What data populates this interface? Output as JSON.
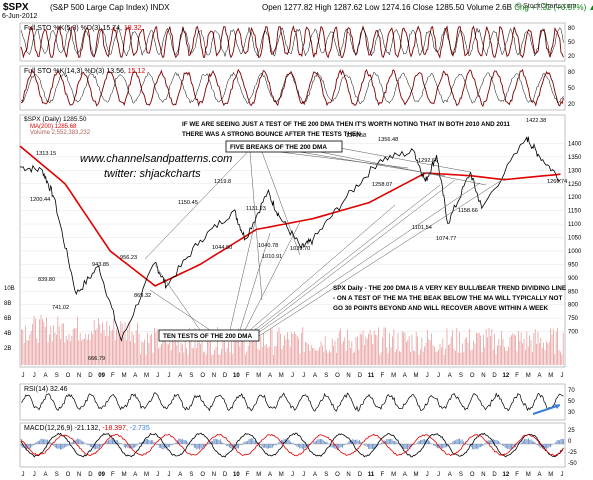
{
  "header": {
    "symbol": "$SPX",
    "name": "(S&P 500 Large Cap Index) INDX",
    "date": "6-Jun-2012",
    "ohlc_text": "Open 1277.82  High 1287.62  Low 1274.16  Close 1285.50  Volume 2.6B",
    "change_text": "Chg +7.32 (+0.57%) ▲",
    "brand": "© StockCharts.com"
  },
  "panels": {
    "sto1": {
      "label": "Full STO %K(5,3) %D(3) 15.74,",
      "label_value": "19.32",
      "levels": [
        "80",
        "50",
        "20"
      ]
    },
    "sto2": {
      "label": "Full STO %K(14,3) %D(3) 13.56,",
      "label_value": "15.12",
      "levels": [
        "80",
        "50",
        "20"
      ]
    },
    "main": {
      "legend_title": "$SPX (Daily) 1285.50",
      "legend_ma": "MA(200) 1285.68",
      "legend_vol": "Volume 2,552,383,232",
      "annotation_top_1": "IF WE ARE SEEING JUST A TEST OF THE 200 DMA THEN IT'S WORTH NOTING THAT IN BOTH 2010 AND 2011",
      "annotation_top_2": "THERE WAS A STRONG BOUNCE AFTER THE TESTS THEN",
      "watermark_1": "www.channelsandpatterns.com",
      "watermark_2": "twitter: shjackcharts",
      "box_breaks": "FIVE BREAKS OF THE 200 DMA",
      "box_tests": "TEN TESTS OF THE 200 DMA",
      "note_1": "SPX Daily - THE 200 DMA IS A VERY KEY BULL/BEAR TREND DIVIDING LINE",
      "note_2": "- ON A TEST OF THE MA THE BEAK BELOW THE MA WILL TYPICALLY NOT",
      "note_3": "GO 30 POINTS BEYOND AND WILL RECOVER ABOVE WITHIN A WEEK",
      "price_labels": [
        "1313.15",
        "1200.44",
        "839.80",
        "741.02",
        "666.79",
        "943.85",
        "956.23",
        "869.32",
        "1150.45",
        "1219.8",
        "1044.50",
        "1131.23",
        "1040.78",
        "1010.91",
        "1039.70",
        "1370.58",
        "1356.48",
        "1258.07",
        "1292.66",
        "1101.54",
        "1074.77",
        "1158.66",
        "1422.38",
        "1266.74"
      ],
      "price_ticks": [
        "1400",
        "1350",
        "1300",
        "1250",
        "1200",
        "1150",
        "1100",
        "1050",
        "1000",
        "950",
        "900",
        "850",
        "800",
        "750",
        "700"
      ],
      "volume_ticks": [
        "10B",
        "8B",
        "6B",
        "4B",
        "2B"
      ]
    },
    "rsi": {
      "label": "RSI(14) 32.46",
      "levels": [
        "70",
        "50",
        "30"
      ]
    },
    "macd": {
      "label": "MACD(12,26,9) -21.132,",
      "label_signal": "-18.397,",
      "label_hist": "-2.735",
      "levels": [
        "25",
        "0",
        "-25",
        "-50"
      ]
    }
  },
  "x_axis": {
    "months": [
      "J",
      "J",
      "A",
      "S",
      "O",
      "N",
      "D",
      "09",
      "F",
      "M",
      "A",
      "M",
      "J",
      "J",
      "A",
      "S",
      "O",
      "N",
      "D",
      "10",
      "F",
      "M",
      "A",
      "M",
      "J",
      "J",
      "A",
      "S",
      "O",
      "N",
      "D",
      "11",
      "F",
      "M",
      "A",
      "M",
      "J",
      "J",
      "A",
      "S",
      "O",
      "N",
      "D",
      "12",
      "F",
      "M",
      "A",
      "M",
      "J"
    ]
  },
  "colors": {
    "price": "#000000",
    "ma": "#e00000",
    "volume": "#e8a0a0",
    "macd_hist": "#6a8fc8",
    "sto_k": "#800000",
    "arrow": "#3b7fd8"
  },
  "chart_data": {
    "type": "line",
    "title": "$SPX (S&P 500 Large Cap Index) INDX",
    "series": [
      {
        "name": "$SPX (Daily)",
        "x": [
          "2008-06",
          "2008-08",
          "2008-09",
          "2008-11",
          "2009-01",
          "2009-03",
          "2009-06",
          "2009-07",
          "2009-10",
          "2010-01",
          "2010-02",
          "2010-04",
          "2010-05",
          "2010-07",
          "2010-08",
          "2010-11",
          "2011-02",
          "2011-05",
          "2011-06",
          "2011-07",
          "2011-08",
          "2011-10",
          "2011-11",
          "2012-03",
          "2012-04",
          "2012-06"
        ],
        "values": [
          1313.15,
          1300,
          1200.44,
          839.8,
          943.85,
          666.79,
          956.23,
          869.32,
          1040,
          1150.45,
          1044.5,
          1219.8,
          1131.23,
          1010.91,
          1039.7,
          1200,
          1340,
          1370.58,
          1258.07,
          1356.48,
          1101.54,
          1292.66,
          1158.66,
          1422.38,
          1360,
          1266.74
        ]
      },
      {
        "name": "MA(200)",
        "x": [
          "2008-06",
          "2008-10",
          "2009-02",
          "2009-06",
          "2009-10",
          "2010-03",
          "2010-08",
          "2011-01",
          "2011-06",
          "2011-10",
          "2012-01",
          "2012-06"
        ],
        "values": [
          1390,
          1250,
          1000,
          870,
          950,
          1080,
          1120,
          1180,
          1290,
          1280,
          1265,
          1285.68
        ]
      }
    ],
    "ylim": [
      650,
      1450
    ],
    "xlabel": "",
    "ylabel": ""
  }
}
